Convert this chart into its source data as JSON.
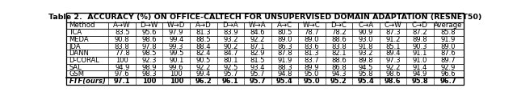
{
  "title": "Table 2.  ACCURACY (%) ON OFFICE-CALTECH FOR UNSUPERVISED DOMAIN ADAPTATION (RESNET50)",
  "columns": [
    "Method",
    "A→W",
    "D→W",
    "W→D",
    "A→D",
    "D→A",
    "W→A",
    "A→C",
    "W→C",
    "D→C",
    "C→A",
    "C→W",
    "C→D",
    "Average"
  ],
  "rows": [
    [
      "TCA",
      "83.5",
      "95.6",
      "97.9",
      "81.3",
      "83.9",
      "84.6",
      "80.5",
      "78.7",
      "78.2",
      "90.9",
      "87.3",
      "87.2",
      "85.8"
    ],
    [
      "MEDA",
      "90.8",
      "98.6",
      "99.4",
      "88.5",
      "93.2",
      "92.2",
      "89.0",
      "89.0",
      "88.6",
      "93.0",
      "91.2",
      "89.8",
      "91.9"
    ],
    [
      "JDA",
      "83.8",
      "97.8",
      "99.3",
      "88.4",
      "90.2",
      "87.1",
      "86.3",
      "83.6",
      "83.8",
      "91.8",
      "85.1",
      "90.3",
      "89.0"
    ],
    [
      "DANN",
      "77.8",
      "98.5",
      "99.5",
      "82.4",
      "84.7",
      "82.9",
      "87.8",
      "81.3",
      "82.1",
      "93.2",
      "89.4",
      "91.1",
      "87.6"
    ],
    [
      "D-CORAL",
      "100",
      "92.3",
      "90.1",
      "90.5",
      "80.1",
      "81.5",
      "91.9",
      "83.7",
      "88.6",
      "89.8",
      "97.3",
      "91.0",
      "89.7"
    ],
    [
      "SAL",
      "94.9",
      "98.9",
      "99.6",
      "92.2",
      "92.5",
      "93.4",
      "88.3",
      "89.9",
      "86.8",
      "94.5",
      "92.2",
      "91.4",
      "92.9"
    ],
    [
      "GSM",
      "97.6",
      "98.3",
      "100",
      "99.4",
      "95.7",
      "95.7",
      "94.8",
      "95.0",
      "94.3",
      "95.8",
      "98.6",
      "94.9",
      "96.6"
    ],
    [
      "FTF(ours)",
      "97.1",
      "100",
      "100",
      "96.2",
      "96.1",
      "95.7",
      "95.4",
      "95.0",
      "95.2",
      "95.4",
      "98.6",
      "95.8",
      "96.7"
    ]
  ],
  "last_row_bold": true,
  "bg_white": "#ffffff",
  "title_fontsize": 6.8,
  "header_fontsize": 6.2,
  "cell_fontsize": 6.0,
  "col_widths_rel": [
    1.55,
    1.0,
    1.0,
    1.0,
    1.0,
    1.0,
    1.0,
    1.0,
    1.0,
    1.0,
    1.0,
    1.0,
    1.0,
    1.1
  ]
}
